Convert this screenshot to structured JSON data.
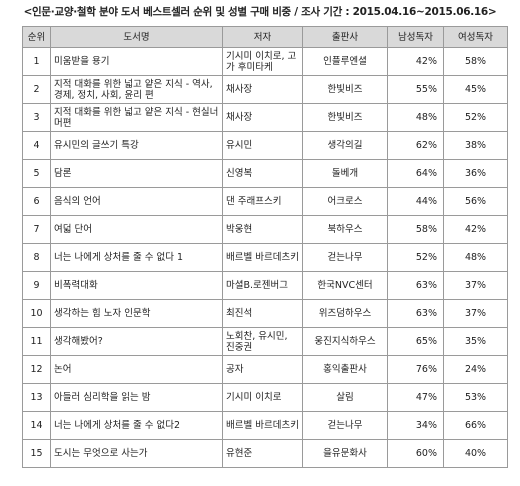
{
  "header": {
    "title": "<인문·교양·철학 분야 도서 베스트셀러 순위 및 성별 구매 비중 / 조사 기간 : 2015.04.16~2015.06.16>"
  },
  "table": {
    "columns": [
      "순위",
      "도서명",
      "저자",
      "출판사",
      "남성독자",
      "여성독자"
    ],
    "rows": [
      [
        "1",
        "미움받을 용기",
        "기시미 이치로, 고가 후미타케",
        "인플루엔셜",
        "42%",
        "58%"
      ],
      [
        "2",
        "지적 대화를 위한 넓고 얕은 지식 - 역사, 경제, 정치, 사회, 윤리 편",
        "채사장",
        "한빛비즈",
        "55%",
        "45%"
      ],
      [
        "3",
        "지적 대화를 위한 넓고 얕은 지식 - 현실너머편",
        "채사장",
        "한빛비즈",
        "48%",
        "52%"
      ],
      [
        "4",
        "유시민의 글쓰기 특강",
        "유시민",
        "생각의길",
        "62%",
        "38%"
      ],
      [
        "5",
        "담론",
        "신영복",
        "돌베개",
        "64%",
        "36%"
      ],
      [
        "6",
        "음식의 언어",
        "댄 주래프스키",
        "어크로스",
        "44%",
        "56%"
      ],
      [
        "7",
        "여덟 단어",
        "박웅현",
        "북하우스",
        "58%",
        "42%"
      ],
      [
        "8",
        "너는 나에게 상처를 줄 수 없다 1",
        "배르벨 바르데츠키",
        "걷는나무",
        "52%",
        "48%"
      ],
      [
        "9",
        "비폭력대화",
        "마셜B.로젠버그",
        "한국NVC센터",
        "63%",
        "37%"
      ],
      [
        "10",
        "생각하는 힘 노자 인문학",
        "최진석",
        "위즈덤하우스",
        "63%",
        "37%"
      ],
      [
        "11",
        "생각해봤어?",
        "노회찬, 유시민, 진중권",
        "웅진지식하우스",
        "65%",
        "35%"
      ],
      [
        "12",
        "논어",
        "공자",
        "홍익출판사",
        "76%",
        "24%"
      ],
      [
        "13",
        "아들러 심리학을 읽는 밤",
        "기시미 이치로",
        "살림",
        "47%",
        "53%"
      ],
      [
        "14",
        "너는 나에게 상처를 줄 수 없다2",
        "배르벨 바르데츠키",
        "걷는나무",
        "34%",
        "66%"
      ],
      [
        "15",
        "도시는 무엇으로 사는가",
        "유현준",
        "을유문화사",
        "60%",
        "40%"
      ]
    ]
  }
}
